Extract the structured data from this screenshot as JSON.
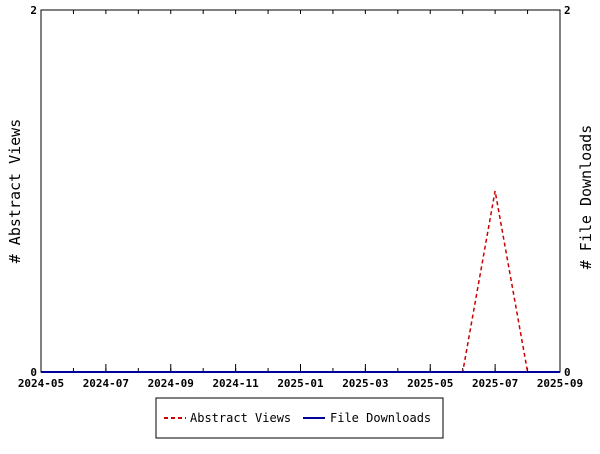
{
  "chart_data": {
    "type": "line",
    "x": [
      "2024-05",
      "2024-06",
      "2024-07",
      "2024-08",
      "2024-09",
      "2024-10",
      "2024-11",
      "2024-12",
      "2025-01",
      "2025-02",
      "2025-03",
      "2025-04",
      "2025-05",
      "2025-06",
      "2025-07",
      "2025-08",
      "2025-09"
    ],
    "x_tick_labels": [
      "2024-05",
      "2024-07",
      "2024-09",
      "2024-11",
      "2025-01",
      "2025-03",
      "2025-05",
      "2025-07",
      "2025-09"
    ],
    "series": [
      {
        "name": "Abstract Views",
        "axis": "left",
        "color": "#cc0000",
        "style": "dashed",
        "x": [
          "2024-05",
          "2024-06",
          "2024-07",
          "2024-08",
          "2024-09",
          "2024-10",
          "2024-11",
          "2024-12",
          "2025-01",
          "2025-02",
          "2025-03",
          "2025-04",
          "2025-05",
          "2025-06",
          "2025-07",
          "2025-08"
        ],
        "values": [
          0,
          0,
          0,
          0,
          0,
          0,
          0,
          0,
          0,
          0,
          0,
          0,
          0,
          0,
          1,
          0
        ]
      },
      {
        "name": "File Downloads",
        "axis": "right",
        "color": "#000099",
        "style": "solid",
        "x": [
          "2024-05",
          "2024-06",
          "2024-07",
          "2024-08",
          "2024-09",
          "2024-10",
          "2024-11",
          "2024-12",
          "2025-01",
          "2025-02",
          "2025-03",
          "2025-04",
          "2025-05",
          "2025-06",
          "2025-07",
          "2025-08",
          "2025-09"
        ],
        "values": [
          0,
          0,
          0,
          0,
          0,
          0,
          0,
          0,
          0,
          0,
          0,
          0,
          0,
          0,
          0,
          0,
          0
        ]
      }
    ],
    "ylabel_left": "# Abstract Views",
    "ylabel_right": "# File Downloads",
    "ylim_left": [
      0,
      2
    ],
    "ylim_right": [
      0,
      2
    ],
    "y_ticks_left": [
      0,
      2
    ],
    "y_ticks_right": [
      0,
      2
    ],
    "grid": false,
    "legend_position": "bottom-center"
  }
}
